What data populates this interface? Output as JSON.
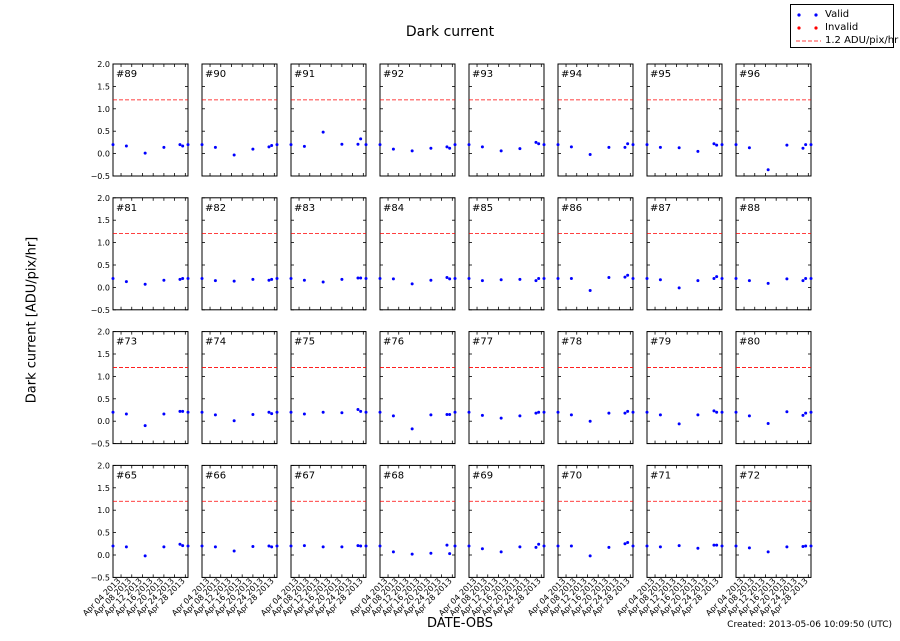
{
  "chart_data": {
    "type": "scatter",
    "title": "Dark current",
    "xlabel": "DATE-OBS",
    "ylabel": "Dark current [ADU/pix/hr]",
    "ylim": [
      -0.5,
      2.0
    ],
    "yticks": [
      "2.0",
      "1.5",
      "1.0",
      "0.5",
      "0.0",
      "−0.5"
    ],
    "xlim": [
      "2013-04-01",
      "2013-04-29"
    ],
    "xticks": [
      "Apr 04 2013",
      "Apr 08 2013",
      "Apr 12 2013",
      "Apr 16 2013",
      "Apr 20 2013",
      "Apr 24 2013",
      "Apr 28 2013"
    ],
    "threshold": 1.2,
    "colors": {
      "valid": "#0000ff",
      "invalid": "#ff0000",
      "threshold": "#ff0000"
    },
    "legend_position": "top-right",
    "dates": [
      "2013-04-01",
      "2013-04-06",
      "2013-04-13",
      "2013-04-20",
      "2013-04-26",
      "2013-04-27",
      "2013-04-29"
    ],
    "panels": [
      {
        "label": "#89",
        "valid": [
          0.2,
          0.17,
          0.01,
          0.14,
          0.2,
          0.17,
          0.2
        ]
      },
      {
        "label": "#90",
        "valid": [
          0.2,
          0.14,
          -0.03,
          0.1,
          0.15,
          0.18,
          0.2
        ]
      },
      {
        "label": "#91",
        "valid": [
          0.2,
          0.16,
          0.48,
          0.21,
          0.21,
          0.33,
          0.2
        ]
      },
      {
        "label": "#92",
        "valid": [
          0.2,
          0.1,
          0.06,
          0.12,
          0.15,
          0.12,
          0.2
        ]
      },
      {
        "label": "#93",
        "valid": [
          0.2,
          0.15,
          0.06,
          0.11,
          0.25,
          0.22,
          0.2
        ]
      },
      {
        "label": "#94",
        "valid": [
          0.2,
          0.15,
          -0.02,
          0.14,
          0.14,
          0.22,
          0.2
        ]
      },
      {
        "label": "#95",
        "valid": [
          0.2,
          0.14,
          0.13,
          0.05,
          0.22,
          0.19,
          0.2
        ]
      },
      {
        "label": "#96",
        "valid": [
          0.2,
          0.13,
          -0.36,
          0.19,
          0.12,
          0.2,
          0.2
        ]
      },
      {
        "label": "#81",
        "valid": [
          0.2,
          0.13,
          0.07,
          0.16,
          0.18,
          0.2,
          0.2
        ]
      },
      {
        "label": "#82",
        "valid": [
          0.2,
          0.15,
          0.14,
          0.18,
          0.16,
          0.18,
          0.2
        ]
      },
      {
        "label": "#83",
        "valid": [
          0.2,
          0.16,
          0.12,
          0.18,
          0.21,
          0.21,
          0.2
        ]
      },
      {
        "label": "#84",
        "valid": [
          0.2,
          0.19,
          0.08,
          0.16,
          0.22,
          0.19,
          0.2
        ]
      },
      {
        "label": "#85",
        "valid": [
          0.2,
          0.15,
          0.17,
          0.18,
          0.15,
          0.2,
          0.2
        ]
      },
      {
        "label": "#86",
        "valid": [
          0.2,
          0.2,
          -0.07,
          0.22,
          0.23,
          0.27,
          0.2
        ]
      },
      {
        "label": "#87",
        "valid": [
          0.2,
          0.17,
          -0.01,
          0.15,
          0.2,
          0.24,
          0.2
        ]
      },
      {
        "label": "#88",
        "valid": [
          0.2,
          0.15,
          0.09,
          0.19,
          0.15,
          0.2,
          0.2
        ]
      },
      {
        "label": "#73",
        "valid": [
          0.2,
          0.16,
          -0.1,
          0.16,
          0.22,
          0.22,
          0.2
        ]
      },
      {
        "label": "#74",
        "valid": [
          0.2,
          0.14,
          0.01,
          0.15,
          0.2,
          0.17,
          0.2
        ]
      },
      {
        "label": "#75",
        "valid": [
          0.2,
          0.16,
          0.2,
          0.19,
          0.26,
          0.22,
          0.2
        ]
      },
      {
        "label": "#76",
        "valid": [
          0.2,
          0.12,
          -0.17,
          0.14,
          0.15,
          0.15,
          0.2
        ]
      },
      {
        "label": "#77",
        "valid": [
          0.2,
          0.13,
          0.07,
          0.12,
          0.18,
          0.2,
          0.2
        ]
      },
      {
        "label": "#78",
        "valid": [
          0.2,
          0.14,
          0.0,
          0.18,
          0.18,
          0.22,
          0.2
        ]
      },
      {
        "label": "#79",
        "valid": [
          0.2,
          0.14,
          -0.06,
          0.14,
          0.23,
          0.2,
          0.2
        ]
      },
      {
        "label": "#80",
        "valid": [
          0.2,
          0.12,
          -0.05,
          0.21,
          0.13,
          0.18,
          0.2
        ]
      },
      {
        "label": "#65",
        "valid": [
          0.2,
          0.18,
          -0.02,
          0.18,
          0.24,
          0.21,
          0.2
        ]
      },
      {
        "label": "#66",
        "valid": [
          0.2,
          0.18,
          0.09,
          0.19,
          0.2,
          0.18,
          0.2
        ]
      },
      {
        "label": "#67",
        "valid": [
          0.2,
          0.21,
          0.18,
          0.18,
          0.21,
          0.2,
          0.2
        ]
      },
      {
        "label": "#68",
        "valid": [
          0.2,
          0.07,
          0.02,
          0.04,
          0.22,
          0.03,
          0.2
        ]
      },
      {
        "label": "#69",
        "valid": [
          0.2,
          0.14,
          0.07,
          0.18,
          0.17,
          0.24,
          0.2
        ]
      },
      {
        "label": "#70",
        "valid": [
          0.2,
          0.2,
          -0.02,
          0.17,
          0.25,
          0.28,
          0.2
        ]
      },
      {
        "label": "#71",
        "valid": [
          0.2,
          0.18,
          0.21,
          0.15,
          0.22,
          0.22,
          0.2
        ]
      },
      {
        "label": "#72",
        "valid": [
          0.2,
          0.16,
          0.07,
          0.18,
          0.19,
          0.2,
          0.2
        ]
      }
    ]
  },
  "legend": {
    "items": [
      {
        "label": "Valid",
        "kind": "dot",
        "color": "#0000ff"
      },
      {
        "label": "Invalid",
        "kind": "dot",
        "color": "#ff0000"
      },
      {
        "label": "1.2 ADU/pix/hr",
        "kind": "dash",
        "color": "#ff0000"
      }
    ]
  },
  "footer": {
    "created": "Created: 2013-05-06 10:09:50 (UTC)"
  }
}
